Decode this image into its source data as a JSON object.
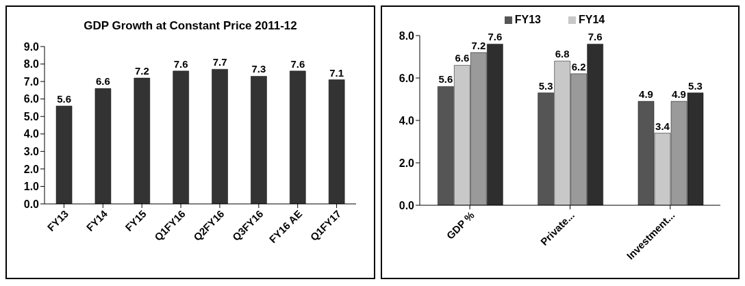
{
  "chart_data": [
    {
      "type": "bar",
      "title": "GDP Growth at Constant Price 2011-12",
      "categories": [
        "FY13",
        "FY14",
        "FY15",
        "Q1FY16",
        "Q2FY16",
        "Q3FY16",
        "FY16 AE",
        "Q1FY17"
      ],
      "series": [
        {
          "color": "#333333",
          "values": [
            5.6,
            6.6,
            7.2,
            7.6,
            7.7,
            7.3,
            7.6,
            7.1
          ]
        }
      ],
      "ylim": [
        0,
        9
      ],
      "yticks": [
        {
          "value": 0,
          "label": "0.0"
        },
        {
          "value": 1,
          "label": "1.0"
        },
        {
          "value": 2,
          "label": "2.0"
        },
        {
          "value": 3,
          "label": "3.0"
        },
        {
          "value": 4,
          "label": "4.0"
        },
        {
          "value": 5,
          "label": "5.0"
        },
        {
          "value": 6,
          "label": "6.0"
        },
        {
          "value": 7,
          "label": "7.0"
        },
        {
          "value": 8,
          "label": "8.0"
        },
        {
          "value": 9,
          "label": "9.0"
        }
      ],
      "data_labels": true,
      "grid": false,
      "legend": false
    },
    {
      "type": "bar",
      "categories": [
        "GDP %",
        "Private...",
        "Investment..."
      ],
      "series": [
        {
          "name": "FY13",
          "color": "#555555",
          "values": [
            5.6,
            5.3,
            4.9
          ]
        },
        {
          "name": "FY14",
          "color": "#c8c8c8",
          "values": [
            6.6,
            6.8,
            3.4
          ]
        },
        {
          "color": "#9a9a9a",
          "values": [
            7.2,
            6.2,
            4.9
          ]
        },
        {
          "color": "#2e2e2e",
          "values": [
            7.6,
            7.6,
            5.3
          ]
        }
      ],
      "ylim": [
        0,
        8
      ],
      "yticks": [
        {
          "value": 0,
          "label": "0.0"
        },
        {
          "value": 2,
          "label": "2.0"
        },
        {
          "value": 4,
          "label": "4.0"
        },
        {
          "value": 6,
          "label": "6.0"
        },
        {
          "value": 8,
          "label": "8.0"
        }
      ],
      "data_labels": true,
      "grid": false,
      "legend": "top"
    }
  ]
}
